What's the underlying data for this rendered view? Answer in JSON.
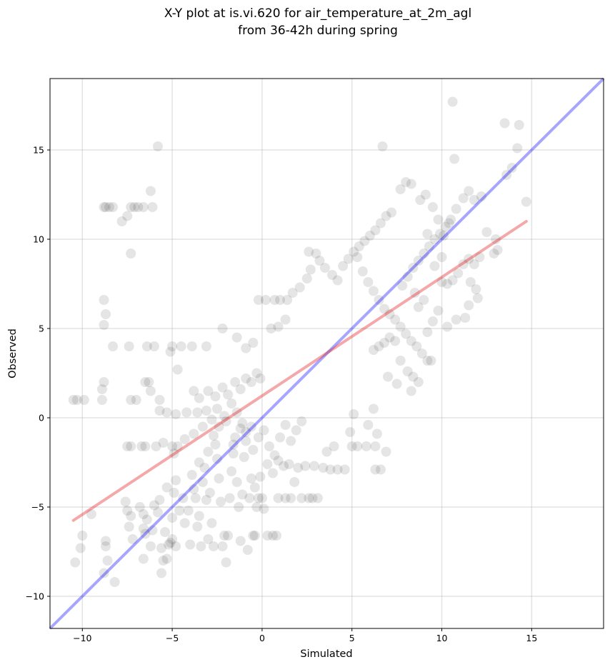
{
  "chart_data": {
    "type": "scatter",
    "title": "X-Y plot at is.vi.620 for air_temperature_at_2m_agl",
    "subtitle": "from 36-42h during spring",
    "xlabel": "Simulated",
    "ylabel": "Observed",
    "xlim": [
      -11.8,
      19.0
    ],
    "ylim": [
      -11.8,
      19.0
    ],
    "xticks": [
      -10,
      -5,
      0,
      5,
      10,
      15
    ],
    "yticks": [
      -10,
      -5,
      0,
      5,
      10,
      15
    ],
    "xtick_labels": [
      "−10",
      "−5",
      "0",
      "5",
      "10",
      "15"
    ],
    "ytick_labels": [
      "−10",
      "−5",
      "0",
      "5",
      "10",
      "15"
    ],
    "grid": true,
    "point_color": "#000000",
    "point_alpha": 0.1,
    "identity_line": {
      "from": [
        -11.8,
        -11.8
      ],
      "to": [
        19.0,
        19.0
      ],
      "color": "#0000ff",
      "alpha": 0.35
    },
    "fit_line": {
      "from": [
        -10.5,
        -5.75
      ],
      "to": [
        14.7,
        11.0
      ],
      "color": "#e31a1c",
      "alpha": 0.38
    },
    "points": [
      [
        -10.5,
        1.0
      ],
      [
        -10.3,
        1.0
      ],
      [
        -9.9,
        1.0
      ],
      [
        -10.4,
        -8.1
      ],
      [
        -10.1,
        -7.3
      ],
      [
        -10.0,
        -6.6
      ],
      [
        -9.5,
        -5.4
      ],
      [
        -8.8,
        -8.7
      ],
      [
        -8.6,
        -8.0
      ],
      [
        -8.7,
        -6.9
      ],
      [
        -8.7,
        -7.2
      ],
      [
        -8.2,
        -9.2
      ],
      [
        -8.8,
        11.8
      ],
      [
        -8.7,
        11.8
      ],
      [
        -8.5,
        11.8
      ],
      [
        -8.3,
        11.8
      ],
      [
        -7.8,
        11.0
      ],
      [
        -7.5,
        11.3
      ],
      [
        -7.3,
        11.8
      ],
      [
        -7.1,
        11.8
      ],
      [
        -6.9,
        11.8
      ],
      [
        -6.6,
        11.8
      ],
      [
        -6.1,
        11.8
      ],
      [
        -6.2,
        12.7
      ],
      [
        -5.8,
        15.2
      ],
      [
        -7.3,
        9.2
      ],
      [
        -8.8,
        6.6
      ],
      [
        -8.7,
        5.8
      ],
      [
        -8.8,
        5.2
      ],
      [
        -8.3,
        4.0
      ],
      [
        -7.4,
        4.0
      ],
      [
        -6.4,
        4.0
      ],
      [
        -6.0,
        4.0
      ],
      [
        -5.0,
        4.0
      ],
      [
        -4.5,
        4.0
      ],
      [
        -3.9,
        4.0
      ],
      [
        -3.1,
        4.0
      ],
      [
        -5.1,
        3.7
      ],
      [
        -4.7,
        2.7
      ],
      [
        -6.3,
        2.0
      ],
      [
        -6.5,
        2.0
      ],
      [
        -6.2,
        1.5
      ],
      [
        -8.8,
        2.0
      ],
      [
        -8.9,
        1.6
      ],
      [
        -8.9,
        1.0
      ],
      [
        -7.3,
        1.0
      ],
      [
        -7.0,
        1.0
      ],
      [
        -5.7,
        1.0
      ],
      [
        -7.5,
        -1.6
      ],
      [
        -7.3,
        -1.6
      ],
      [
        -6.7,
        -1.6
      ],
      [
        -6.5,
        -1.6
      ],
      [
        -5.9,
        -1.6
      ],
      [
        -5.0,
        -1.6
      ],
      [
        -4.7,
        -1.6
      ],
      [
        -7.6,
        -4.7
      ],
      [
        -7.5,
        -5.2
      ],
      [
        -7.3,
        -5.5
      ],
      [
        -7.4,
        -6.1
      ],
      [
        -7.2,
        -6.8
      ],
      [
        -6.8,
        -5.0
      ],
      [
        -6.6,
        -5.4
      ],
      [
        -6.4,
        -5.7
      ],
      [
        -6.6,
        -6.2
      ],
      [
        -6.5,
        -6.5
      ],
      [
        -6.6,
        -7.9
      ],
      [
        -6.2,
        -7.2
      ],
      [
        -6.1,
        -6.3
      ],
      [
        -6.0,
        -4.9
      ],
      [
        -5.8,
        -5.3
      ],
      [
        -5.7,
        -4.6
      ],
      [
        -5.6,
        -7.3
      ],
      [
        -5.5,
        -8.0
      ],
      [
        -5.4,
        -6.4
      ],
      [
        -5.2,
        -7.1
      ],
      [
        -5.1,
        -7.0
      ],
      [
        -5.0,
        -5.6
      ],
      [
        -4.9,
        -4.2
      ],
      [
        -4.8,
        -3.5
      ],
      [
        -5.3,
        -3.9
      ],
      [
        -5.6,
        -8.7
      ],
      [
        -5.3,
        -7.9
      ],
      [
        -5.0,
        -6.8
      ],
      [
        -4.8,
        -7.2
      ],
      [
        -4.6,
        -5.2
      ],
      [
        -4.4,
        -4.5
      ],
      [
        -4.3,
        -5.9
      ],
      [
        -4.1,
        -5.2
      ],
      [
        -4.0,
        -7.1
      ],
      [
        -3.9,
        -3.2
      ],
      [
        -3.8,
        -4.0
      ],
      [
        -3.7,
        -4.5
      ],
      [
        -3.6,
        -6.1
      ],
      [
        -3.5,
        -5.5
      ],
      [
        -3.4,
        -7.2
      ],
      [
        -3.3,
        -3.6
      ],
      [
        -3.2,
        -2.8
      ],
      [
        -3.1,
        -4.6
      ],
      [
        -3.0,
        -6.8
      ],
      [
        -2.9,
        -4.2
      ],
      [
        -2.8,
        -5.9
      ],
      [
        -2.7,
        -7.2
      ],
      [
        -2.6,
        -1.5
      ],
      [
        -2.5,
        -2.3
      ],
      [
        -2.4,
        -3.4
      ],
      [
        -2.3,
        -4.7
      ],
      [
        -2.2,
        -7.2
      ],
      [
        -2.1,
        -6.6
      ],
      [
        -2.0,
        -8.1
      ],
      [
        -1.9,
        -6.6
      ],
      [
        -1.8,
        -4.5
      ],
      [
        -1.7,
        -3.0
      ],
      [
        -1.6,
        -2.0
      ],
      [
        -1.5,
        -1.1
      ],
      [
        -1.4,
        -3.6
      ],
      [
        -1.3,
        -5.0
      ],
      [
        -1.2,
        -6.9
      ],
      [
        -1.1,
        -4.3
      ],
      [
        -1.0,
        -2.2
      ],
      [
        -0.9,
        -0.8
      ],
      [
        -0.8,
        -7.4
      ],
      [
        -0.7,
        -4.5
      ],
      [
        -0.6,
        -3.4
      ],
      [
        -0.5,
        -6.6
      ],
      [
        -0.4,
        -6.6
      ],
      [
        -0.3,
        -5.0
      ],
      [
        -0.2,
        -4.5
      ],
      [
        0.0,
        -4.5
      ],
      [
        0.1,
        -5.1
      ],
      [
        0.3,
        -6.6
      ],
      [
        0.6,
        -6.6
      ],
      [
        0.8,
        -6.6
      ],
      [
        0.9,
        -4.5
      ],
      [
        1.3,
        -4.5
      ],
      [
        1.6,
        -4.5
      ],
      [
        1.8,
        -3.6
      ],
      [
        2.2,
        -4.5
      ],
      [
        2.6,
        -4.5
      ],
      [
        2.8,
        -4.5
      ],
      [
        3.1,
        -4.5
      ],
      [
        1.5,
        -2.6
      ],
      [
        2.0,
        -2.8
      ],
      [
        2.4,
        -2.7
      ],
      [
        2.9,
        -2.7
      ],
      [
        3.4,
        -2.8
      ],
      [
        3.8,
        -2.9
      ],
      [
        4.2,
        -2.9
      ],
      [
        4.6,
        -2.9
      ],
      [
        3.6,
        -1.9
      ],
      [
        4.0,
        -1.6
      ],
      [
        5.0,
        -1.6
      ],
      [
        5.3,
        -1.6
      ],
      [
        5.8,
        -1.6
      ],
      [
        6.3,
        -1.6
      ],
      [
        6.9,
        -1.9
      ],
      [
        6.6,
        -2.9
      ],
      [
        6.3,
        -2.9
      ],
      [
        6.4,
        -0.9
      ],
      [
        5.9,
        -0.4
      ],
      [
        4.9,
        -0.8
      ],
      [
        5.1,
        0.2
      ],
      [
        6.2,
        0.5
      ],
      [
        -5.5,
        -1.4
      ],
      [
        -4.9,
        -2.0
      ],
      [
        -4.3,
        -1.2
      ],
      [
        -3.8,
        -0.9
      ],
      [
        -3.3,
        -0.5
      ],
      [
        -2.8,
        -0.1
      ],
      [
        -5.7,
        0.4
      ],
      [
        -5.3,
        0.3
      ],
      [
        -4.8,
        0.2
      ],
      [
        -4.2,
        0.3
      ],
      [
        -3.6,
        0.3
      ],
      [
        -3.1,
        0.4
      ],
      [
        -2.5,
        0.5
      ],
      [
        -2.1,
        0.1
      ],
      [
        -1.7,
        0.8
      ],
      [
        -1.4,
        0.3
      ],
      [
        -1.1,
        -0.3
      ],
      [
        -0.6,
        -0.5
      ],
      [
        -3.8,
        1.5
      ],
      [
        -3.5,
        1.1
      ],
      [
        -3.0,
        1.5
      ],
      [
        -2.6,
        1.2
      ],
      [
        -2.2,
        1.7
      ],
      [
        -1.9,
        1.3
      ],
      [
        -1.5,
        2.0
      ],
      [
        -1.2,
        1.6
      ],
      [
        -0.9,
        2.2
      ],
      [
        -0.6,
        2.0
      ],
      [
        -0.3,
        2.5
      ],
      [
        -0.1,
        2.2
      ],
      [
        -2.2,
        5.0
      ],
      [
        -1.4,
        4.5
      ],
      [
        -0.9,
        3.9
      ],
      [
        -0.5,
        4.2
      ],
      [
        -0.2,
        6.6
      ],
      [
        0.2,
        6.6
      ],
      [
        0.7,
        6.6
      ],
      [
        1.0,
        6.6
      ],
      [
        1.4,
        6.6
      ],
      [
        0.5,
        5.0
      ],
      [
        0.9,
        5.1
      ],
      [
        1.3,
        5.5
      ],
      [
        1.7,
        7.0
      ],
      [
        2.1,
        7.3
      ],
      [
        2.5,
        7.8
      ],
      [
        2.7,
        8.3
      ],
      [
        2.6,
        9.3
      ],
      [
        3.0,
        9.2
      ],
      [
        3.2,
        8.8
      ],
      [
        3.5,
        8.4
      ],
      [
        3.9,
        8.0
      ],
      [
        4.2,
        7.7
      ],
      [
        4.5,
        8.5
      ],
      [
        4.8,
        8.9
      ],
      [
        5.1,
        9.3
      ],
      [
        5.4,
        9.6
      ],
      [
        5.7,
        9.9
      ],
      [
        6.0,
        10.2
      ],
      [
        6.3,
        10.5
      ],
      [
        6.6,
        10.9
      ],
      [
        6.9,
        11.3
      ],
      [
        7.2,
        11.5
      ],
      [
        6.7,
        15.2
      ],
      [
        5.3,
        9.0
      ],
      [
        5.6,
        8.2
      ],
      [
        5.9,
        7.6
      ],
      [
        6.2,
        7.1
      ],
      [
        6.5,
        6.6
      ],
      [
        6.8,
        6.1
      ],
      [
        7.1,
        5.8
      ],
      [
        7.4,
        5.5
      ],
      [
        7.7,
        5.1
      ],
      [
        8.0,
        4.7
      ],
      [
        8.3,
        4.3
      ],
      [
        8.6,
        4.0
      ],
      [
        8.9,
        3.6
      ],
      [
        9.2,
        3.2
      ],
      [
        9.4,
        3.2
      ],
      [
        8.1,
        2.6
      ],
      [
        8.4,
        2.3
      ],
      [
        8.7,
        2.0
      ],
      [
        8.3,
        1.5
      ],
      [
        7.5,
        1.9
      ],
      [
        7.0,
        2.3
      ],
      [
        7.7,
        3.2
      ],
      [
        7.4,
        4.3
      ],
      [
        7.1,
        4.5
      ],
      [
        6.8,
        4.2
      ],
      [
        6.5,
        4.0
      ],
      [
        6.2,
        3.8
      ],
      [
        7.8,
        7.4
      ],
      [
        8.1,
        7.9
      ],
      [
        8.4,
        8.4
      ],
      [
        8.7,
        8.8
      ],
      [
        9.0,
        9.2
      ],
      [
        9.3,
        9.6
      ],
      [
        9.6,
        10.0
      ],
      [
        9.9,
        10.3
      ],
      [
        10.2,
        10.7
      ],
      [
        10.5,
        11.1
      ],
      [
        10.8,
        11.7
      ],
      [
        11.2,
        12.3
      ],
      [
        11.5,
        12.7
      ],
      [
        11.8,
        12.2
      ],
      [
        12.2,
        12.4
      ],
      [
        7.7,
        12.8
      ],
      [
        8.0,
        13.2
      ],
      [
        8.3,
        13.1
      ],
      [
        8.8,
        12.2
      ],
      [
        9.1,
        12.5
      ],
      [
        9.5,
        11.8
      ],
      [
        9.8,
        11.1
      ],
      [
        10.1,
        10.2
      ],
      [
        10.4,
        10.9
      ],
      [
        10.7,
        14.5
      ],
      [
        10.6,
        17.7
      ],
      [
        13.5,
        16.5
      ],
      [
        14.3,
        16.4
      ],
      [
        14.2,
        15.1
      ],
      [
        13.9,
        14.0
      ],
      [
        13.6,
        13.6
      ],
      [
        14.7,
        12.1
      ],
      [
        12.5,
        10.4
      ],
      [
        13.0,
        10.0
      ],
      [
        13.1,
        9.4
      ],
      [
        12.9,
        9.2
      ],
      [
        12.1,
        9.0
      ],
      [
        11.8,
        8.6
      ],
      [
        11.5,
        8.9
      ],
      [
        11.2,
        8.6
      ],
      [
        10.9,
        8.1
      ],
      [
        10.6,
        7.7
      ],
      [
        10.3,
        7.5
      ],
      [
        10.0,
        7.6
      ],
      [
        11.6,
        7.6
      ],
      [
        11.9,
        7.2
      ],
      [
        12.0,
        6.7
      ],
      [
        11.5,
        6.3
      ],
      [
        11.3,
        5.6
      ],
      [
        10.8,
        5.5
      ],
      [
        10.3,
        5.1
      ],
      [
        9.8,
        6.0
      ],
      [
        9.5,
        5.4
      ],
      [
        9.2,
        4.8
      ],
      [
        9.0,
        6.6
      ],
      [
        8.7,
        6.2
      ],
      [
        8.5,
        7.0
      ],
      [
        9.6,
        8.5
      ],
      [
        10.0,
        9.0
      ],
      [
        9.2,
        10.3
      ],
      [
        -3.5,
        -2.5
      ],
      [
        -3.0,
        -1.9
      ],
      [
        -2.7,
        -1.0
      ],
      [
        -2.4,
        -0.5
      ],
      [
        -2.0,
        -0.2
      ],
      [
        -1.6,
        -1.5
      ],
      [
        -1.2,
        -0.6
      ],
      [
        -0.9,
        -1.3
      ],
      [
        -0.5,
        -1.8
      ],
      [
        -0.2,
        -1.1
      ],
      [
        0.1,
        -0.7
      ],
      [
        0.4,
        -1.6
      ],
      [
        0.7,
        -2.1
      ],
      [
        1.0,
        -1.1
      ],
      [
        1.3,
        -0.4
      ],
      [
        1.6,
        -1.3
      ],
      [
        1.9,
        -0.7
      ],
      [
        2.2,
        -0.2
      ],
      [
        0.6,
        -3.1
      ],
      [
        0.9,
        -2.4
      ],
      [
        1.2,
        -2.7
      ],
      [
        0.3,
        -2.6
      ],
      [
        -0.1,
        -3.3
      ],
      [
        -0.4,
        -3.9
      ]
    ]
  }
}
